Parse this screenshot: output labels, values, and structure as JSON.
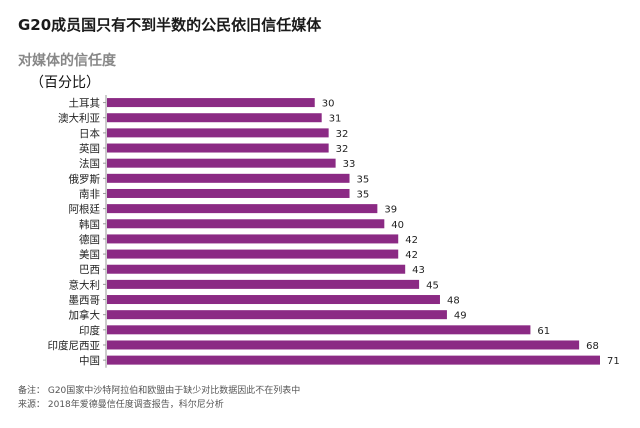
{
  "header": {
    "title": "G20成员国只有不到半数的公民依旧信任媒体",
    "subtitle": "对媒体的信任度",
    "unit": "（百分比）"
  },
  "footer": {
    "note": "备注：   G20国家中沙特阿拉伯和欧盟由于缺少对比数据因此不在列表中",
    "source": "来源：   2018年爱德曼信任度调查报告，科尔尼分析"
  },
  "colors": {
    "bar": "#8b2a84",
    "label": "#222222",
    "value": "#222222",
    "axis": "#999999"
  },
  "chart_data": {
    "type": "bar",
    "orientation": "horizontal",
    "categories": [
      "土耳其",
      "澳大利亚",
      "日本",
      "英国",
      "法国",
      "俄罗斯",
      "南非",
      "阿根廷",
      "韩国",
      "德国",
      "美国",
      "巴西",
      "意大利",
      "墨西哥",
      "加拿大",
      "印度",
      "印度尼西亚",
      "中国"
    ],
    "values": [
      30,
      31,
      32,
      32,
      33,
      35,
      35,
      39,
      40,
      42,
      42,
      43,
      45,
      48,
      49,
      61,
      68,
      71
    ],
    "title": "对媒体的信任度",
    "unit": "（百分比）",
    "xlim": [
      0,
      71
    ],
    "grid": false,
    "data_labels": true
  }
}
